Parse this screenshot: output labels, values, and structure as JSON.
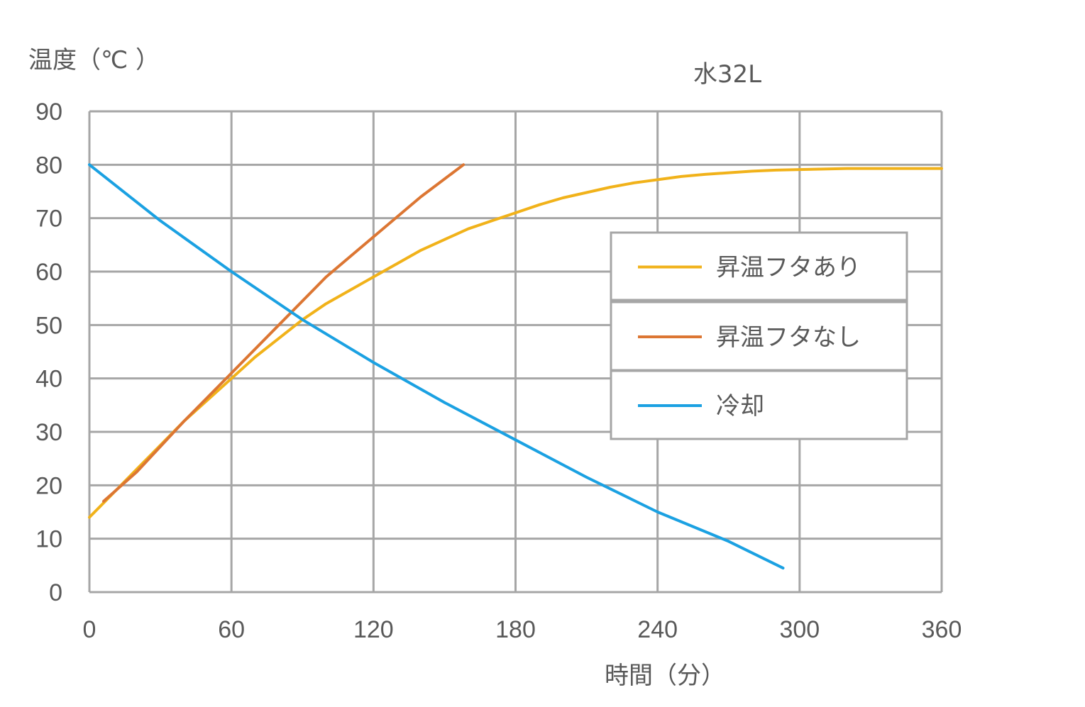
{
  "chart_data": {
    "type": "line",
    "title": "水32L",
    "xlabel": "時間（分）",
    "ylabel": "温度（℃ ）",
    "xlim": [
      0,
      360
    ],
    "ylim": [
      0,
      90
    ],
    "xticks": [
      0,
      60,
      120,
      180,
      240,
      300,
      360
    ],
    "yticks": [
      0,
      10,
      20,
      30,
      40,
      50,
      60,
      70,
      80,
      90
    ],
    "grid": true,
    "legend_position": "right",
    "series": [
      {
        "name": "昇温フタあり",
        "color": "#F1B21A",
        "x": [
          0,
          10,
          20,
          30,
          40,
          50,
          60,
          70,
          80,
          90,
          100,
          110,
          120,
          130,
          140,
          150,
          160,
          170,
          180,
          190,
          200,
          210,
          220,
          230,
          240,
          250,
          260,
          270,
          280,
          290,
          300,
          310,
          320,
          330,
          340,
          350,
          360
        ],
        "values": [
          14,
          18.5,
          23,
          27.5,
          32,
          36,
          40,
          44,
          47.5,
          51,
          54,
          56.5,
          59,
          61.5,
          64,
          66,
          68,
          69.5,
          71,
          72.5,
          73.8,
          74.8,
          75.8,
          76.6,
          77.2,
          77.8,
          78.2,
          78.5,
          78.8,
          79,
          79.1,
          79.2,
          79.3,
          79.3,
          79.3,
          79.3,
          79.3
        ]
      },
      {
        "name": "昇温フタなし",
        "color": "#DC7633",
        "x": [
          6,
          20,
          40,
          60,
          80,
          100,
          120,
          140,
          158
        ],
        "values": [
          17,
          22.5,
          32,
          41,
          50,
          59,
          66.5,
          74,
          80
        ]
      },
      {
        "name": "冷却",
        "color": "#1BA1E2",
        "x": [
          0,
          30,
          60,
          90,
          120,
          150,
          180,
          210,
          240,
          270,
          293
        ],
        "values": [
          80,
          69.5,
          60,
          51,
          43,
          35.5,
          28.5,
          21.5,
          15,
          9.5,
          4.5
        ]
      }
    ]
  }
}
